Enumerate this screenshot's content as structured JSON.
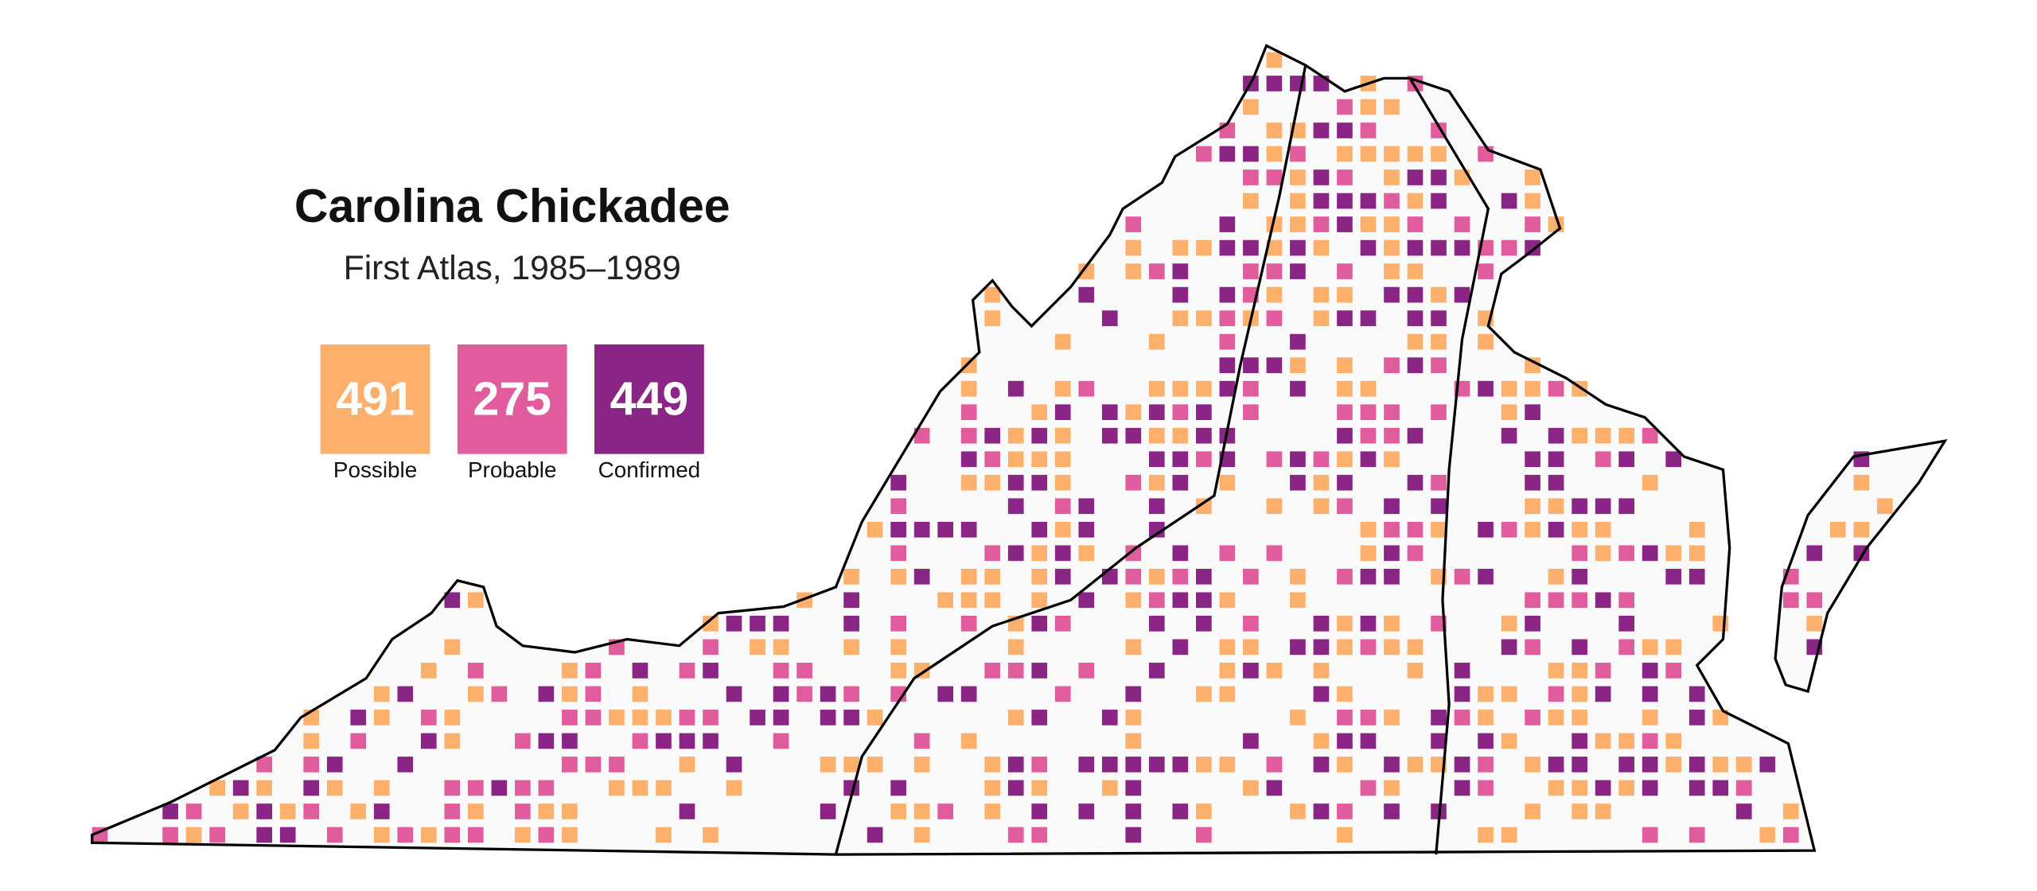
{
  "title": "Carolina Chickadee",
  "subtitle": "First Atlas, 1985–1989",
  "legend": [
    {
      "label": "Possible",
      "count": "491",
      "color": "#fdb06c"
    },
    {
      "label": "Probable",
      "count": "275",
      "color": "#e05c9c"
    },
    {
      "label": "Confirmed",
      "count": "449",
      "color": "#8b2585"
    }
  ]
}
